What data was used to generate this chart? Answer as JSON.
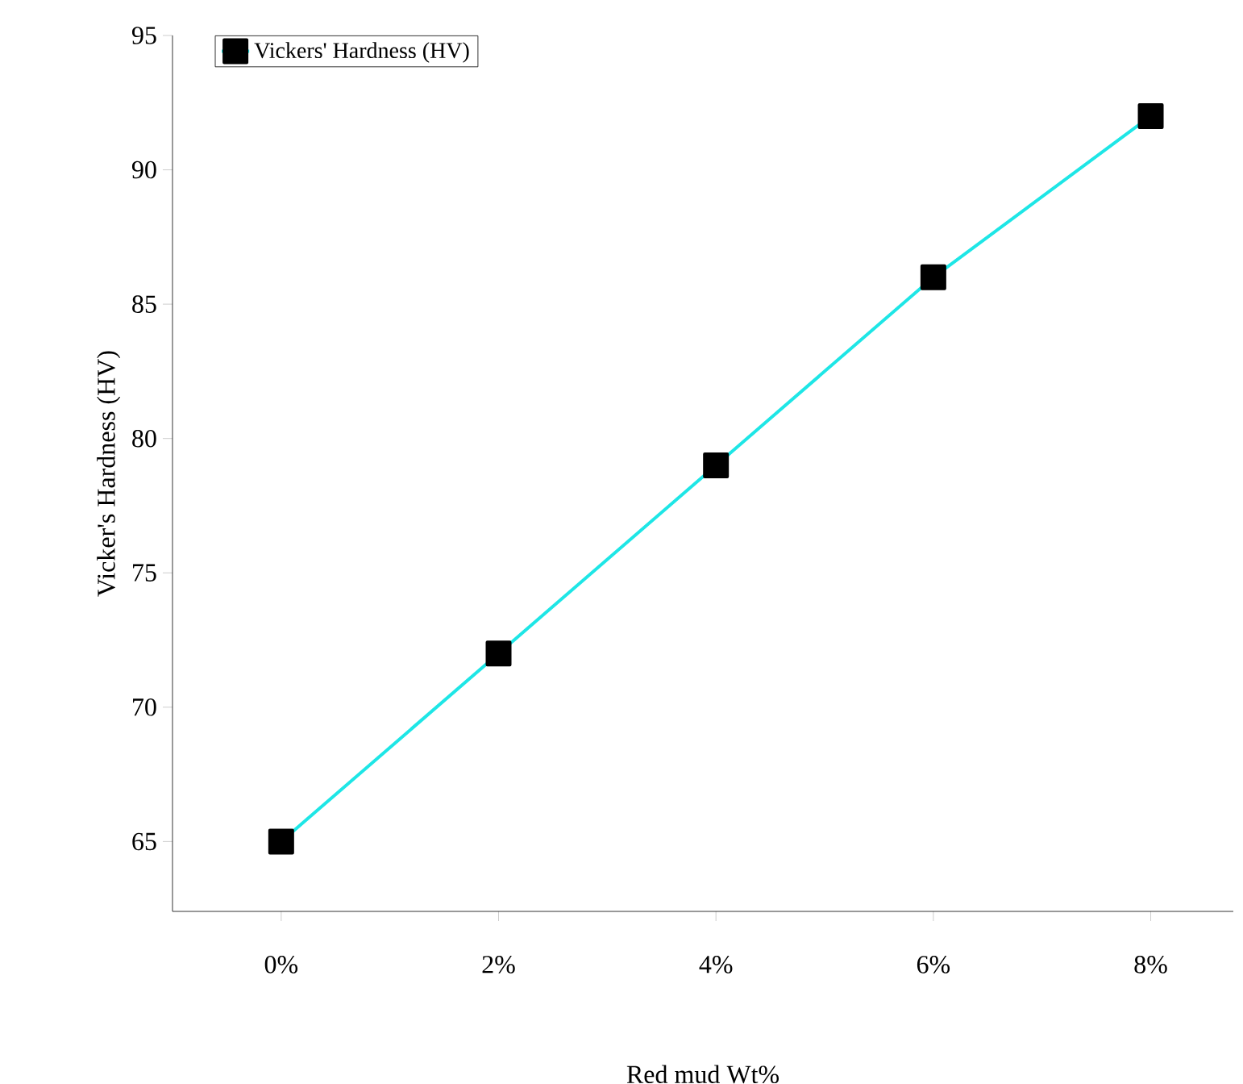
{
  "chart_data": {
    "type": "line",
    "xlabel": "Red mud Wt%",
    "ylabel": "Vicker's Hardness (HV)",
    "categories": [
      "0%",
      "2%",
      "4%",
      "6%",
      "8%"
    ],
    "series": [
      {
        "name": "Vickers' Hardness (HV)",
        "color": "#1ee6e6",
        "values": [
          65,
          72,
          79,
          86,
          92
        ]
      }
    ],
    "ylim": [
      62.4,
      95
    ],
    "yticks": [
      65,
      70,
      75,
      80,
      85,
      90,
      95
    ],
    "marker": "square",
    "line_style": "solid",
    "legend": "top left",
    "grid": false
  }
}
